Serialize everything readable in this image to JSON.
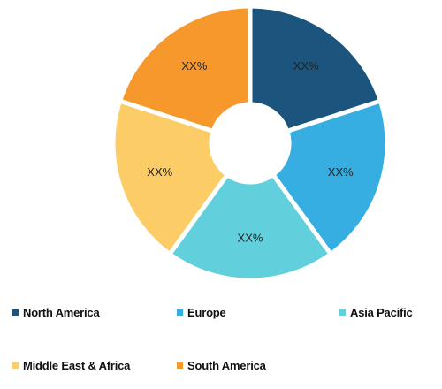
{
  "chart_data": {
    "type": "pie",
    "style": "donut",
    "categories": [
      "North America",
      "Europe",
      "Asia Pacific",
      "Middle East & Africa",
      "South America"
    ],
    "values": [
      20,
      20,
      20,
      20,
      20
    ],
    "labels": [
      "XX%",
      "XX%",
      "XX%",
      "XX%",
      "XX%"
    ],
    "colors": [
      "#1b557e",
      "#36aee1",
      "#62d0dc",
      "#fccd67",
      "#f6982c"
    ],
    "legend_position": "bottom"
  }
}
